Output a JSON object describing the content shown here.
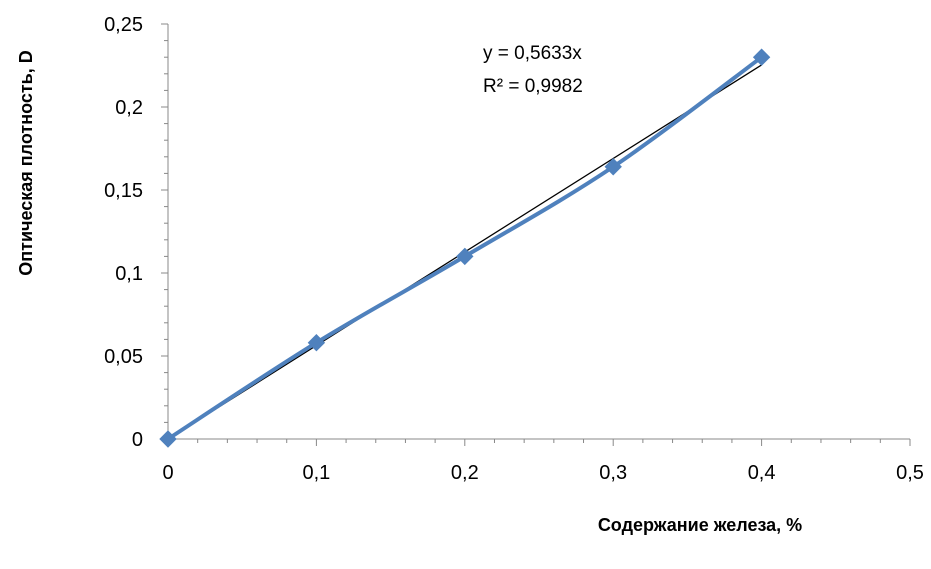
{
  "chart_data": {
    "type": "scatter",
    "title": "",
    "xlabel": "Содержание железа, %",
    "ylabel": "Оптическая плотность, D",
    "xlim": [
      0,
      0.5
    ],
    "ylim": [
      0,
      0.25
    ],
    "x_ticks": [
      0,
      0.1,
      0.2,
      0.3,
      0.4,
      0.5
    ],
    "y_ticks": [
      0,
      0.05,
      0.1,
      0.15,
      0.2,
      0.25
    ],
    "x_tick_labels": [
      "0",
      "0,1",
      "0,2",
      "0,3",
      "0,4",
      "0,5"
    ],
    "y_tick_labels": [
      "0",
      "0,05",
      "0,1",
      "0,15",
      "0,2",
      "0,25"
    ],
    "grid": false,
    "legend": "none",
    "series": [
      {
        "x": [
          0,
          0.1,
          0.2,
          0.3,
          0.4
        ],
        "y": [
          0,
          0.058,
          0.11,
          0.164,
          0.23
        ],
        "color": "#4f81bd",
        "marker": "diamond",
        "smoothed_line": true
      }
    ],
    "trendline": {
      "type": "linear",
      "slope": 0.5633,
      "intercept": 0,
      "color": "#000000",
      "equation": "y = 0,5633x",
      "r_squared": "R² = 0,9982"
    }
  }
}
